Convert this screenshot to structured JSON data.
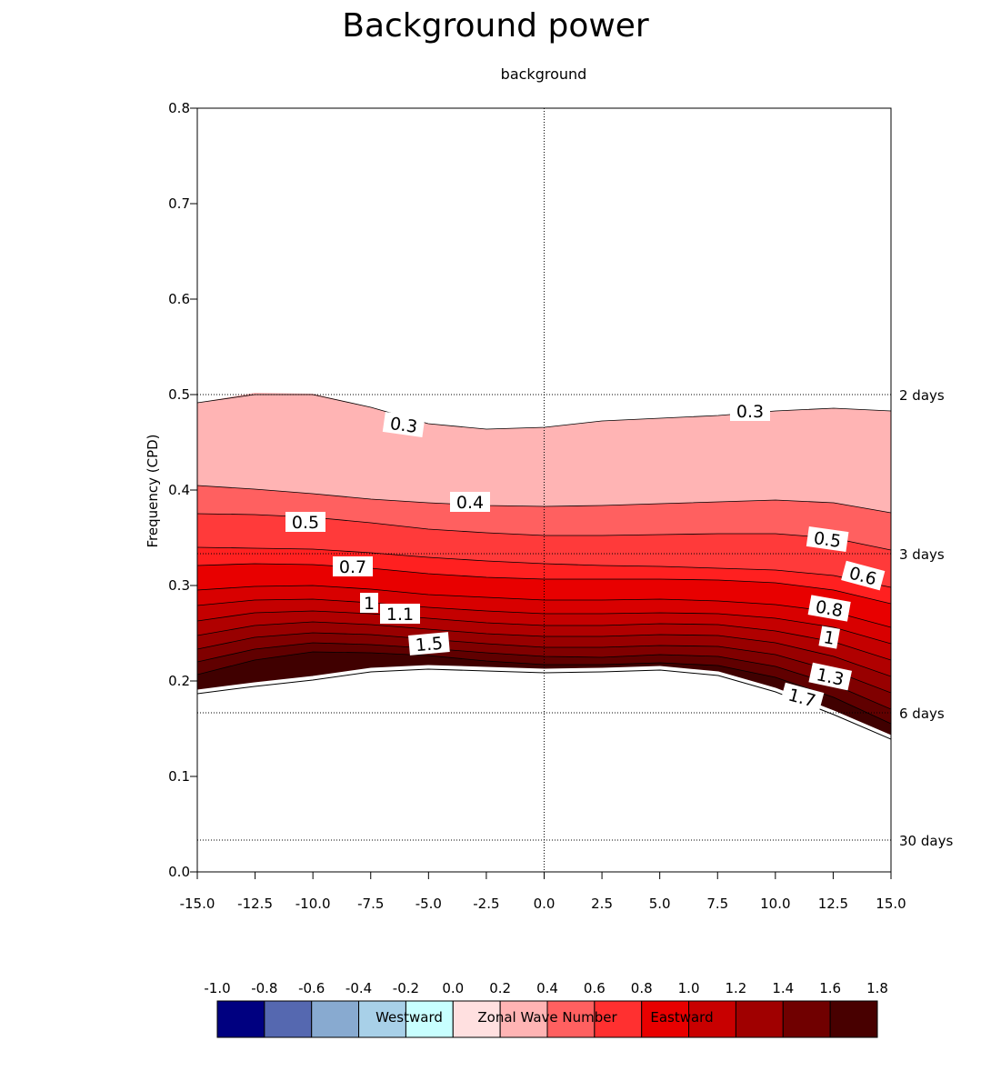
{
  "title": "Background power",
  "subtitle": "background",
  "chart_data": {
    "type": "contour",
    "xlabel": "Zonal Wave Number",
    "ylabel": "Frequency (CPD)",
    "xlim": [
      -15,
      15
    ],
    "ylim": [
      0,
      0.8
    ],
    "x_ticks": [
      "-15.0",
      "-12.5",
      "-10.0",
      "-7.5",
      "-5.0",
      "-2.5",
      "0.0",
      "2.5",
      "5.0",
      "7.5",
      "10.0",
      "12.5",
      "15.0"
    ],
    "y_ticks": [
      "0.0",
      "0.1",
      "0.2",
      "0.3",
      "0.4",
      "0.5",
      "0.6",
      "0.7",
      "0.8"
    ],
    "period_lines": [
      {
        "label": "2 days",
        "freq": 0.5
      },
      {
        "label": "3 days",
        "freq": 0.3333
      },
      {
        "label": "6 days",
        "freq": 0.1667
      },
      {
        "label": "30 days",
        "freq": 0.0333
      }
    ],
    "region_labels": {
      "west": "Westward",
      "east": "Eastward"
    },
    "colorbar": {
      "ticks": [
        "-1.0",
        "-0.8",
        "-0.6",
        "-0.4",
        "-0.2",
        "0.0",
        "0.2",
        "0.4",
        "0.6",
        "0.8",
        "1.0",
        "1.2",
        "1.4",
        "1.6",
        "1.8"
      ],
      "colors": [
        "#000080",
        "#5568b0",
        "#88aad0",
        "#a8d0e8",
        "#c8ffff",
        "#ffe0e0",
        "#ffb4b4",
        "#ff6060",
        "#ff3030",
        "#e80000",
        "#c80000",
        "#a00000",
        "#700000",
        "#480000"
      ]
    },
    "contour_labels": [
      "0.3",
      "0.3",
      "0.4",
      "0.5",
      "0.5",
      "0.6",
      "0.7",
      "0.8",
      "1",
      "1",
      "1.1",
      "1.3",
      "1.5",
      "1.7"
    ],
    "grid": false
  }
}
